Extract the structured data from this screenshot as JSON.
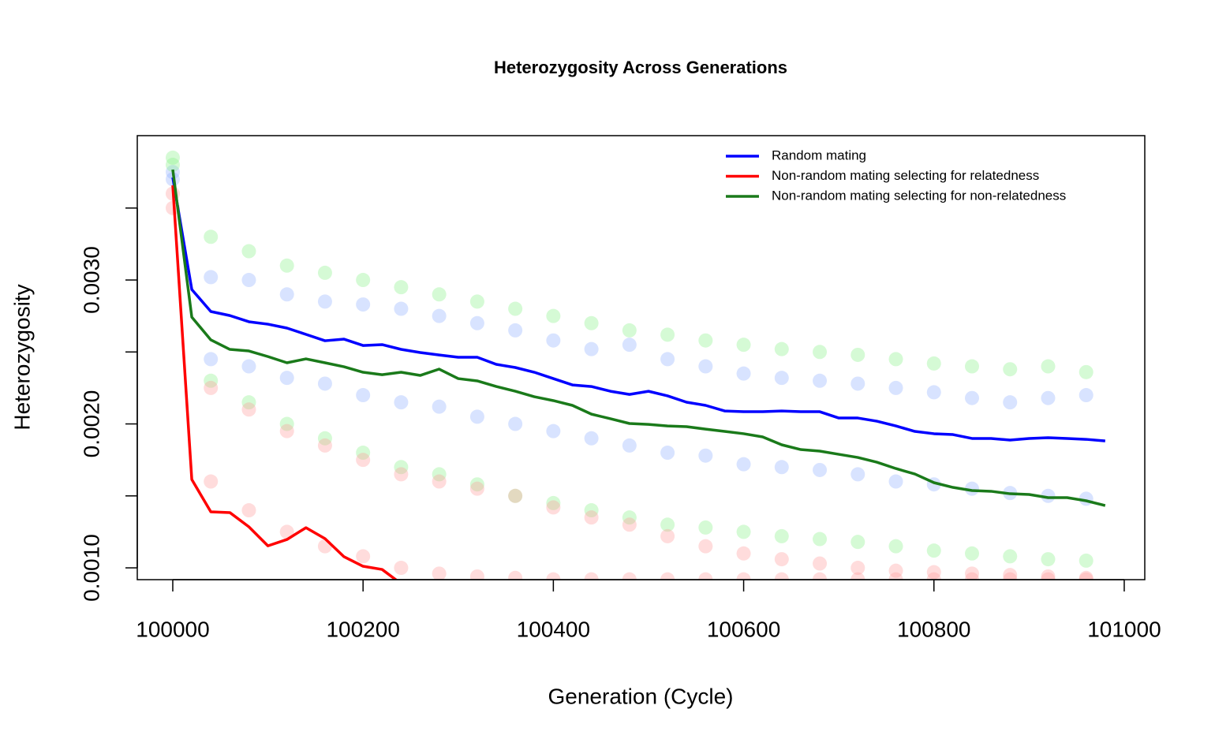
{
  "chart_data": {
    "type": "line",
    "title": "Heterozygosity Across Generations",
    "xlabel": "Generation (Cycle)",
    "ylabel": "Heterozygosity",
    "x": [
      100000,
      100020,
      100040,
      100060,
      100080,
      100100,
      100120,
      100140,
      100160,
      100180,
      100200,
      100220,
      100240,
      100260,
      100280,
      100300,
      100320,
      100340,
      100360,
      100380,
      100400,
      100420,
      100440,
      100460,
      100480,
      100500,
      100520,
      100540,
      100560,
      100580,
      100600,
      100620,
      100640,
      100660,
      100680,
      100700,
      100720,
      100740,
      100760,
      100780,
      100800,
      100820,
      100840,
      100860,
      100880,
      100900,
      100920,
      100940,
      100960,
      100980
    ],
    "series": [
      {
        "name": "Random mating",
        "color": "#0000ff",
        "values": [
          0.003712,
          0.002934,
          0.002781,
          0.002753,
          0.00271,
          0.002693,
          0.002666,
          0.002622,
          0.002578,
          0.002589,
          0.002545,
          0.002551,
          0.002518,
          0.002496,
          0.002479,
          0.002463,
          0.002463,
          0.002414,
          0.002392,
          0.002359,
          0.002315,
          0.002271,
          0.00226,
          0.002227,
          0.002205,
          0.002227,
          0.002195,
          0.002151,
          0.002129,
          0.00209,
          0.002085,
          0.002085,
          0.00209,
          0.002085,
          0.002085,
          0.002041,
          0.002041,
          0.002019,
          0.001986,
          0.001948,
          0.001932,
          0.001926,
          0.001899,
          0.001899,
          0.001888,
          0.001899,
          0.001904,
          0.001899,
          0.001893,
          0.001882
        ]
      },
      {
        "name": "Non-random mating selecting for relatedness",
        "color": "#ff0000",
        "values": [
          0.003658,
          0.001614,
          0.001389,
          0.001384,
          0.001285,
          0.001153,
          0.001197,
          0.001279,
          0.001203,
          0.001077,
          0.001011,
          0.000989,
          0.00089,
          null,
          null,
          null,
          null,
          null,
          null,
          null,
          null,
          null,
          null,
          null,
          null,
          null,
          null,
          null,
          null,
          null,
          null,
          null,
          null,
          null,
          null,
          null,
          null,
          null,
          null,
          null,
          null,
          null,
          null,
          null,
          null,
          null,
          null,
          null,
          null,
          null
        ]
      },
      {
        "name": "Non-random mating selecting for non-relatedness",
        "color": "#1a7a1a",
        "values": [
          0.003767,
          0.002742,
          0.002584,
          0.002518,
          0.002507,
          0.002468,
          0.002425,
          0.002452,
          0.002425,
          0.002397,
          0.002359,
          0.002342,
          0.002359,
          0.002337,
          0.002381,
          0.002315,
          0.002299,
          0.00226,
          0.002227,
          0.002189,
          0.002162,
          0.002129,
          0.002068,
          0.002036,
          0.002003,
          0.001997,
          0.001986,
          0.001981,
          0.001964,
          0.001948,
          0.001932,
          0.00191,
          0.001855,
          0.001822,
          0.001811,
          0.001789,
          0.001767,
          0.001734,
          0.00169,
          0.001652,
          0.001592,
          0.001559,
          0.001537,
          0.001532,
          0.001515,
          0.00151,
          0.001488,
          0.001488,
          0.001466,
          0.001433
        ]
      }
    ],
    "replicate_x": [
      100000,
      100040,
      100080,
      100120,
      100160,
      100200,
      100240,
      100280,
      100320,
      100360,
      100400,
      100440,
      100480,
      100520,
      100560,
      100600,
      100640,
      100680,
      100720,
      100760,
      100800,
      100840,
      100880,
      100920,
      100960
    ],
    "replicate_alpha": 0.35,
    "replicates": [
      {
        "color": "#8fb0ff",
        "values": [
          0.00375,
          0.00302,
          0.003,
          0.0029,
          0.00285,
          0.00283,
          0.0028,
          0.00275,
          0.0027,
          0.00265,
          0.00258,
          0.00252,
          0.00255,
          0.00245,
          0.0024,
          0.00235,
          0.00232,
          0.0023,
          0.00228,
          0.00225,
          0.00222,
          0.00218,
          0.00215,
          0.00218,
          0.0022
        ]
      },
      {
        "color": "#8fb0ff",
        "values": [
          0.0037,
          0.00245,
          0.0024,
          0.00232,
          0.00228,
          0.0022,
          0.00215,
          0.00212,
          0.00205,
          0.002,
          0.00195,
          0.0019,
          0.00185,
          0.0018,
          0.00178,
          0.00172,
          0.0017,
          0.00168,
          0.00165,
          0.0016,
          0.00158,
          0.00155,
          0.00152,
          0.0015,
          0.00148
        ]
      },
      {
        "color": "#88f088",
        "values": [
          0.00385,
          0.0033,
          0.0032,
          0.0031,
          0.00305,
          0.003,
          0.00295,
          0.0029,
          0.00285,
          0.0028,
          0.00275,
          0.0027,
          0.00265,
          0.00262,
          0.00258,
          0.00255,
          0.00252,
          0.0025,
          0.00248,
          0.00245,
          0.00242,
          0.0024,
          0.00238,
          0.0024,
          0.00236
        ]
      },
      {
        "color": "#88f088",
        "values": [
          0.0038,
          0.0023,
          0.00215,
          0.002,
          0.0019,
          0.0018,
          0.0017,
          0.00165,
          0.00158,
          0.0015,
          0.00145,
          0.0014,
          0.00135,
          0.0013,
          0.00128,
          0.00125,
          0.00122,
          0.0012,
          0.00118,
          0.00115,
          0.00112,
          0.0011,
          0.00108,
          0.00106,
          0.00105
        ]
      },
      {
        "color": "#ff9a9a",
        "values": [
          0.0036,
          0.00225,
          0.0021,
          0.00195,
          0.00185,
          0.00175,
          0.00165,
          0.0016,
          0.00155,
          0.0015,
          0.00142,
          0.00135,
          0.0013,
          0.00122,
          0.00115,
          0.0011,
          0.00106,
          0.00103,
          0.001,
          0.00098,
          0.00097,
          0.00096,
          0.00095,
          0.00094,
          0.00093
        ]
      },
      {
        "color": "#ff9a9a",
        "values": [
          0.0035,
          0.0016,
          0.0014,
          0.00125,
          0.00115,
          0.00108,
          0.001,
          0.00096,
          0.00094,
          0.00093,
          0.00092,
          0.00092,
          0.00092,
          0.00092,
          0.00092,
          0.00092,
          0.00092,
          0.00092,
          0.00092,
          0.00092,
          0.00092,
          0.00092,
          0.00092,
          0.00092,
          0.00092
        ]
      }
    ],
    "xlim": [
      99962.7,
      101021.6
    ],
    "ylim": [
      0.000918,
      0.004003
    ],
    "xticks": [
      100000,
      100200,
      100400,
      100600,
      100800,
      101000
    ],
    "yticks": [
      {
        "value": 0.001,
        "label": "0.0010"
      },
      {
        "value": 0.002,
        "label": "0.0020"
      },
      {
        "value": 0.003,
        "label": "0.0030"
      }
    ],
    "yticks_unlabeled": [
      0.0015,
      0.0025,
      0.0035
    ],
    "legend": "topright",
    "grid": false
  }
}
